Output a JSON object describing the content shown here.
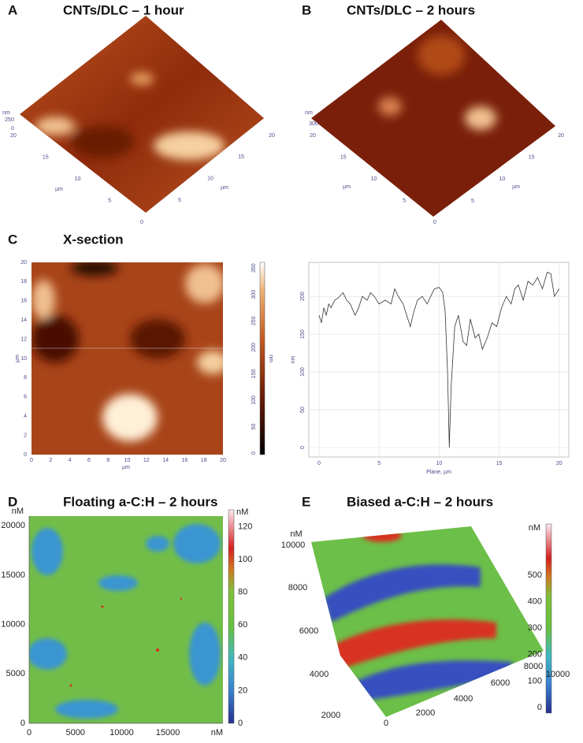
{
  "panels": {
    "a": {
      "label": "A",
      "title": "CNTs/DLC – 1 hour",
      "z_unit": "nm",
      "z_ticks": [
        "250",
        "0"
      ],
      "left_ticks": [
        "20",
        "15",
        "10",
        "5",
        "0"
      ],
      "right_ticks": [
        "5",
        "10",
        "15",
        "20"
      ],
      "unit": "µm"
    },
    "b": {
      "label": "B",
      "title": "CNTs/DLC – 2 hours",
      "z_unit": "nm",
      "z_ticks": [
        "300"
      ],
      "left_ticks": [
        "20",
        "15",
        "10",
        "5",
        "0"
      ],
      "right_ticks": [
        "5",
        "10",
        "15",
        "20"
      ],
      "unit": "µm"
    },
    "c": {
      "label": "C",
      "title": "X-section",
      "x_ticks": [
        0,
        2,
        4,
        6,
        8,
        10,
        12,
        14,
        16,
        18,
        20
      ],
      "y_ticks": [
        0,
        2,
        4,
        6,
        8,
        10,
        12,
        14,
        16,
        18,
        20
      ],
      "unit": "µm",
      "bar_ticks": [
        0,
        50,
        100,
        150,
        200,
        250,
        300,
        350
      ],
      "bar_unit": "nm"
    },
    "d": {
      "label": "D",
      "title": "Floating a-C:H – 2 hours",
      "unit": "nM",
      "x_ticks": [
        0,
        5000,
        10000,
        15000
      ],
      "y_ticks": [
        0,
        5000,
        10000,
        15000,
        20000
      ],
      "bar_ticks": [
        0,
        20,
        40,
        60,
        80,
        100,
        120
      ]
    },
    "e": {
      "label": "E",
      "title": "Biased a-C:H – 2 hours",
      "unit": "nM",
      "y_ticks": [
        10000,
        8000,
        6000,
        4000,
        2000
      ],
      "x_ticks": [
        0,
        2000,
        4000,
        6000,
        8000
      ],
      "x_end": 10000,
      "bar_ticks": [
        0,
        100,
        200,
        300,
        400,
        500
      ]
    }
  },
  "chart_data": {
    "type": "line",
    "xlabel": "Plane, µm",
    "ylabel": "nm",
    "color": "#333333",
    "grid": true,
    "xlim": [
      -0.85,
      20.8
    ],
    "ylim": [
      -12.5,
      245
    ],
    "xticks": [
      0,
      5,
      10,
      15,
      20
    ],
    "yticks": [
      0,
      50,
      100,
      150,
      200
    ],
    "x": [
      0,
      0.2,
      0.4,
      0.6,
      0.8,
      1,
      1.3,
      1.6,
      2,
      2.3,
      2.6,
      3,
      3.3,
      3.6,
      4,
      4.3,
      4.6,
      5,
      5.5,
      6,
      6.3,
      6.6,
      7,
      7.3,
      7.6,
      7.9,
      8.2,
      8.6,
      9,
      9.3,
      9.6,
      10,
      10.3,
      10.5,
      10.7,
      10.85,
      11,
      11.3,
      11.6,
      12,
      12.3,
      12.6,
      13,
      13.3,
      13.6,
      14,
      14.4,
      14.8,
      15.2,
      15.6,
      16,
      16.3,
      16.6,
      17,
      17.4,
      17.8,
      18.2,
      18.6,
      19,
      19.3,
      19.6,
      20
    ],
    "values": [
      175,
      165,
      185,
      175,
      190,
      185,
      195,
      198,
      205,
      195,
      190,
      175,
      185,
      200,
      195,
      205,
      200,
      190,
      195,
      190,
      210,
      200,
      190,
      175,
      160,
      180,
      195,
      200,
      190,
      200,
      210,
      212,
      205,
      180,
      100,
      0,
      80,
      160,
      175,
      140,
      135,
      170,
      145,
      150,
      130,
      145,
      165,
      160,
      185,
      200,
      190,
      210,
      215,
      195,
      220,
      215,
      225,
      210,
      232,
      230,
      200,
      210
    ]
  }
}
